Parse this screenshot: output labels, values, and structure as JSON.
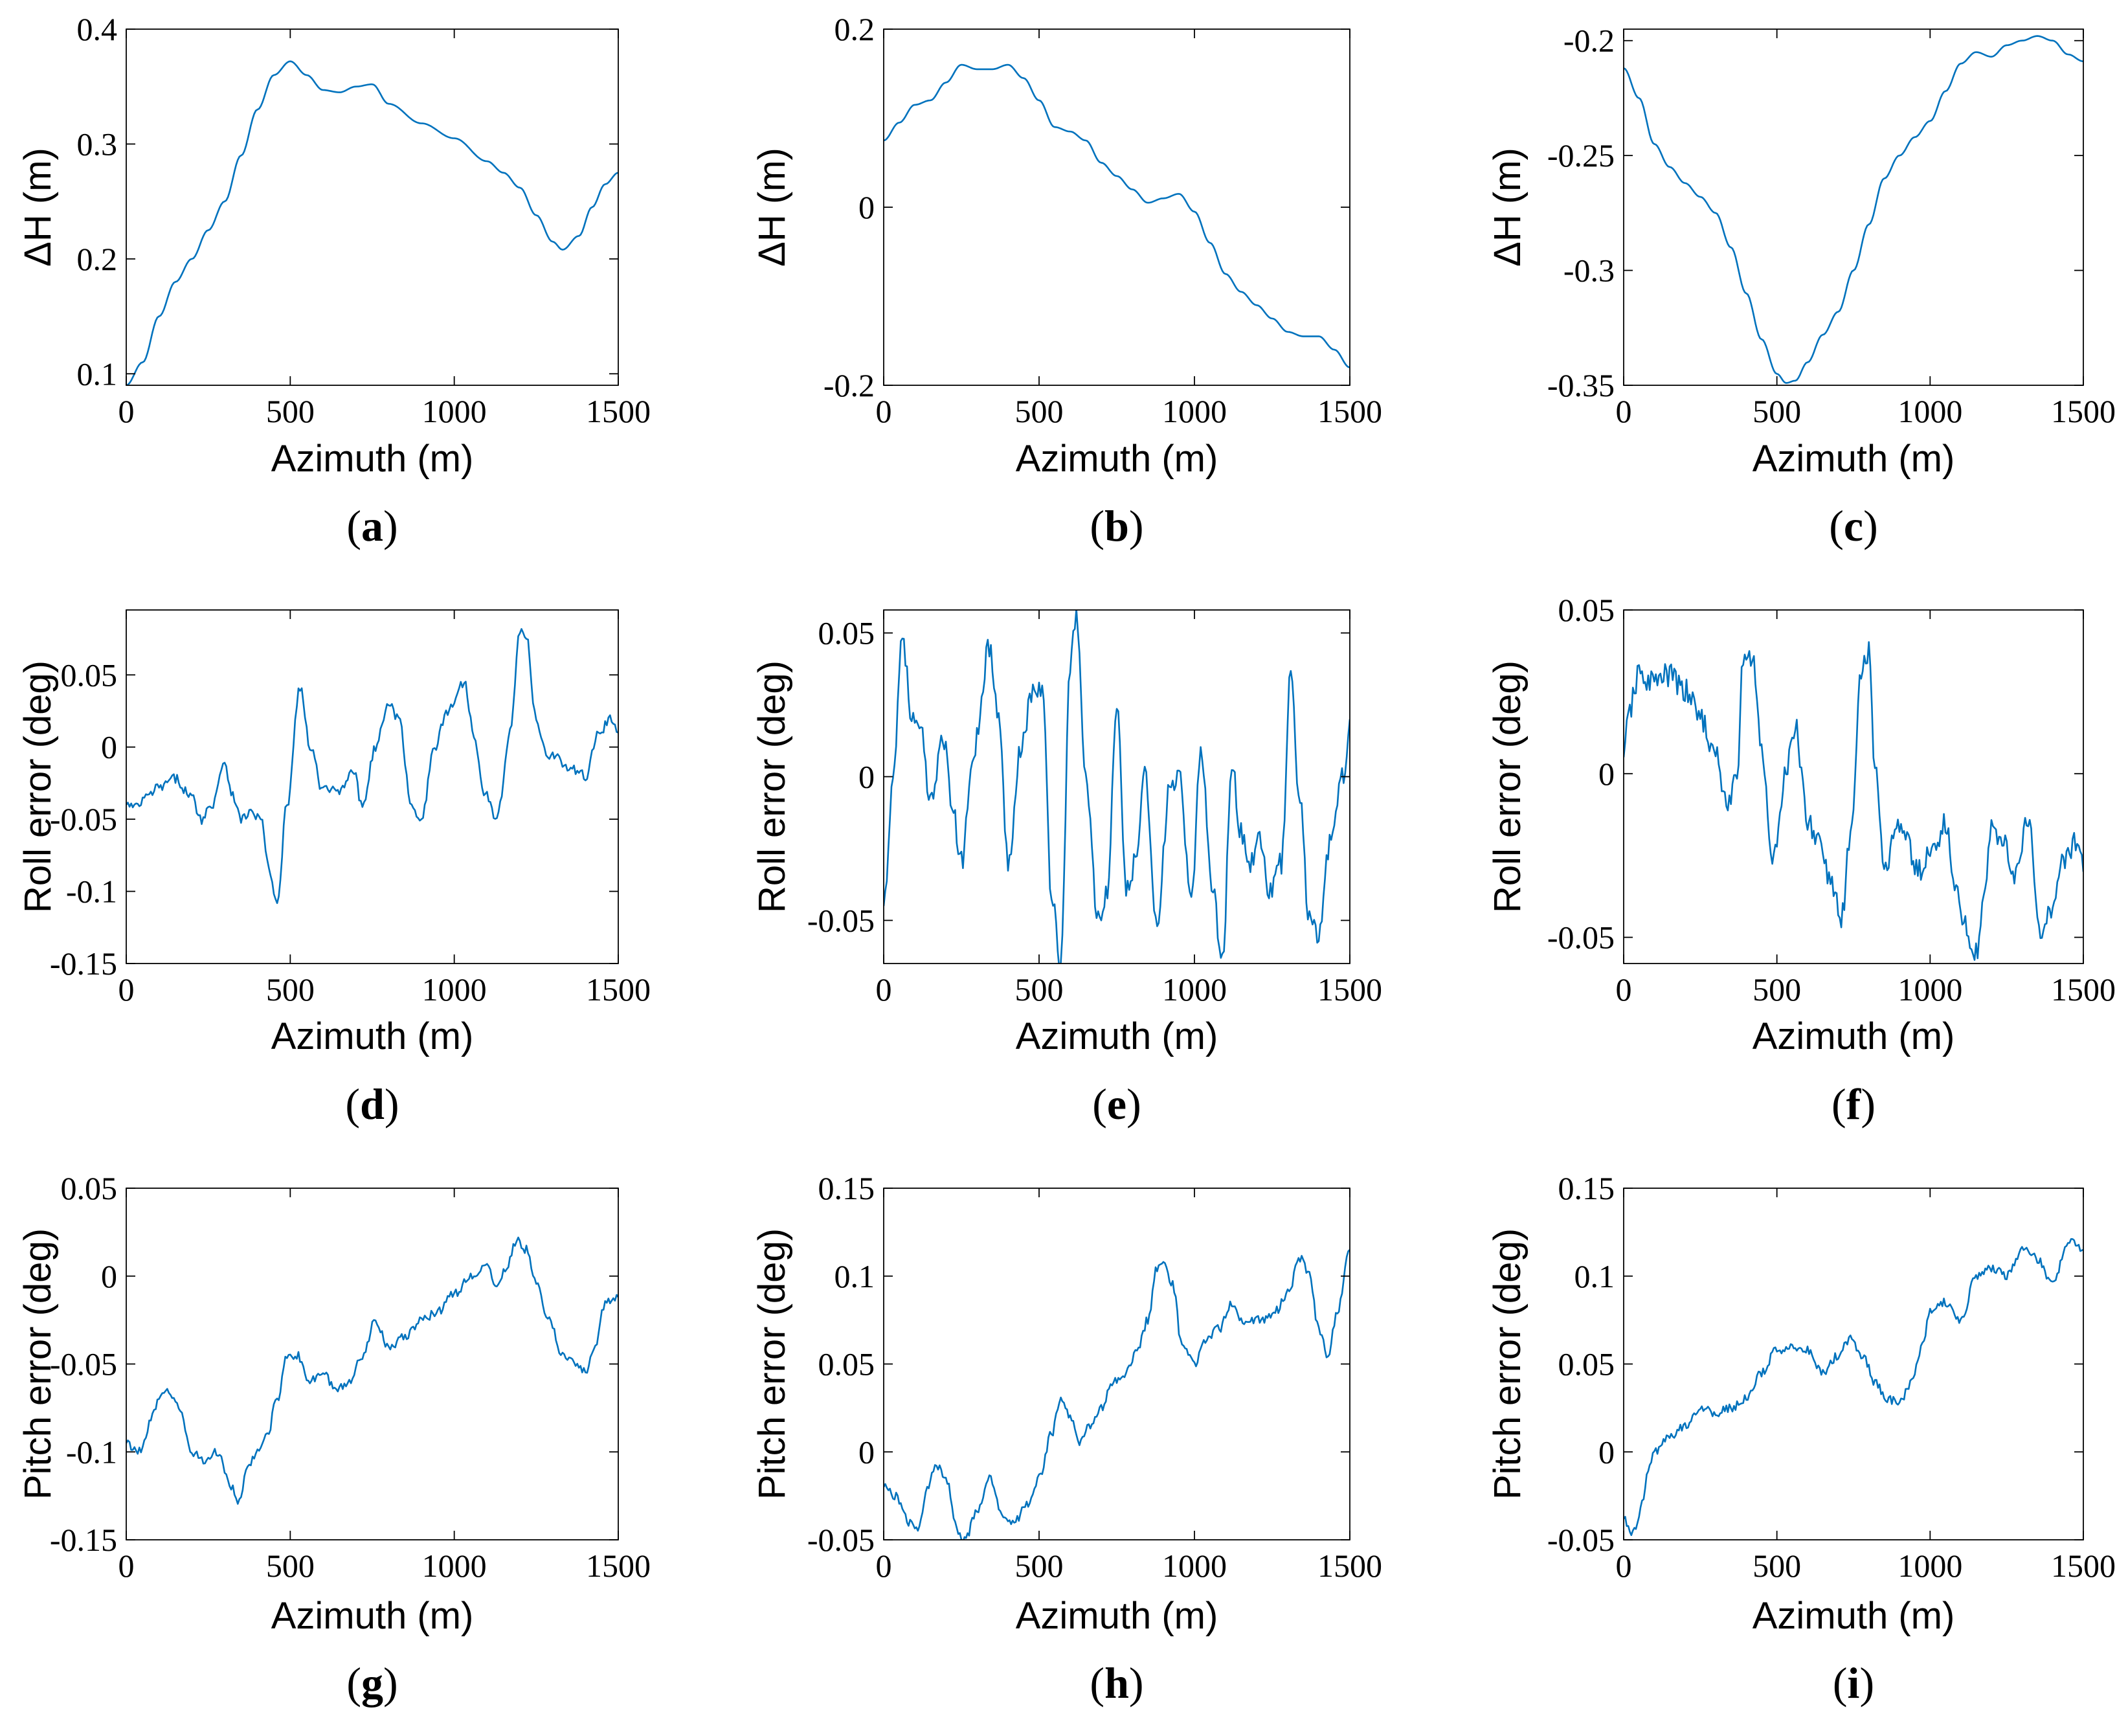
{
  "colors": {
    "line": "#0072BD",
    "axis": "#000000",
    "background": "#ffffff"
  },
  "chart_data": [
    {
      "id": "a",
      "type": "line",
      "caption_letter": "a",
      "xlabel": "Azimuth (m)",
      "ylabel": "ΔH (m)",
      "xlim": [
        0,
        1500
      ],
      "ylim": [
        0.09,
        0.4
      ],
      "xticks": [
        0,
        500,
        1000,
        1500
      ],
      "xtick_labels": [
        "0",
        "500",
        "1000",
        "1500"
      ],
      "yticks": [
        0.1,
        0.2,
        0.3,
        0.4
      ],
      "ytick_labels": [
        "0.1",
        "0.2",
        "0.3",
        "0.4"
      ],
      "series": [
        {
          "name": "ΔH",
          "noise": 0,
          "x": [
            0,
            50,
            100,
            150,
            200,
            250,
            300,
            350,
            400,
            450,
            500,
            550,
            600,
            650,
            700,
            750,
            800,
            900,
            1000,
            1100,
            1150,
            1200,
            1250,
            1300,
            1330,
            1380,
            1420,
            1460,
            1500
          ],
          "y": [
            0.09,
            0.11,
            0.15,
            0.18,
            0.2,
            0.225,
            0.25,
            0.29,
            0.33,
            0.36,
            0.372,
            0.36,
            0.347,
            0.345,
            0.35,
            0.352,
            0.335,
            0.318,
            0.305,
            0.285,
            0.275,
            0.262,
            0.238,
            0.215,
            0.208,
            0.22,
            0.245,
            0.265,
            0.275
          ]
        }
      ]
    },
    {
      "id": "b",
      "type": "line",
      "caption_letter": "b",
      "xlabel": "Azimuth (m)",
      "ylabel": "ΔH (m)",
      "xlim": [
        0,
        1500
      ],
      "ylim": [
        -0.2,
        0.2
      ],
      "xticks": [
        0,
        500,
        1000,
        1500
      ],
      "xtick_labels": [
        "0",
        "500",
        "1000",
        "1500"
      ],
      "yticks": [
        -0.2,
        0,
        0.2
      ],
      "ytick_labels": [
        "-0.2",
        "0",
        "0.2"
      ],
      "series": [
        {
          "name": "ΔH",
          "noise": 0,
          "x": [
            0,
            50,
            100,
            150,
            200,
            250,
            300,
            350,
            400,
            450,
            500,
            550,
            600,
            650,
            700,
            750,
            800,
            850,
            900,
            950,
            1000,
            1050,
            1100,
            1150,
            1200,
            1250,
            1300,
            1350,
            1400,
            1450,
            1500
          ],
          "y": [
            0.075,
            0.095,
            0.115,
            0.12,
            0.14,
            0.16,
            0.155,
            0.155,
            0.16,
            0.145,
            0.12,
            0.09,
            0.085,
            0.075,
            0.05,
            0.035,
            0.02,
            0.005,
            0.01,
            0.015,
            -0.005,
            -0.04,
            -0.075,
            -0.095,
            -0.11,
            -0.125,
            -0.14,
            -0.145,
            -0.145,
            -0.16,
            -0.18
          ]
        }
      ]
    },
    {
      "id": "c",
      "type": "line",
      "caption_letter": "c",
      "xlabel": "Azimuth (m)",
      "ylabel": "ΔH (m)",
      "xlim": [
        0,
        1500
      ],
      "ylim": [
        -0.35,
        -0.195
      ],
      "xticks": [
        0,
        500,
        1000,
        1500
      ],
      "xtick_labels": [
        "0",
        "500",
        "1000",
        "1500"
      ],
      "yticks": [
        -0.35,
        -0.3,
        -0.25,
        -0.2
      ],
      "ytick_labels": [
        "-0.35",
        "-0.3",
        "-0.25",
        "-0.2"
      ],
      "series": [
        {
          "name": "ΔH",
          "noise": 0,
          "x": [
            0,
            50,
            100,
            150,
            200,
            250,
            300,
            350,
            400,
            450,
            500,
            530,
            560,
            600,
            650,
            700,
            750,
            800,
            850,
            900,
            950,
            1000,
            1050,
            1100,
            1150,
            1200,
            1250,
            1300,
            1350,
            1400,
            1450,
            1500
          ],
          "y": [
            -0.212,
            -0.225,
            -0.245,
            -0.255,
            -0.262,
            -0.268,
            -0.275,
            -0.29,
            -0.31,
            -0.33,
            -0.345,
            -0.349,
            -0.348,
            -0.34,
            -0.328,
            -0.318,
            -0.3,
            -0.28,
            -0.26,
            -0.25,
            -0.242,
            -0.235,
            -0.222,
            -0.21,
            -0.205,
            -0.207,
            -0.202,
            -0.2,
            -0.198,
            -0.2,
            -0.206,
            -0.209
          ]
        }
      ]
    },
    {
      "id": "d",
      "type": "line",
      "caption_letter": "d",
      "xlabel": "Azimuth (m)",
      "ylabel": "Roll error (deg)",
      "xlim": [
        0,
        1500
      ],
      "ylim": [
        -0.15,
        0.095
      ],
      "xticks": [
        0,
        500,
        1000,
        1500
      ],
      "xtick_labels": [
        "0",
        "500",
        "1000",
        "1500"
      ],
      "yticks": [
        -0.15,
        -0.1,
        -0.05,
        0,
        0.05
      ],
      "ytick_labels": [
        "-0.15",
        "-0.1",
        "-0.05",
        "0",
        "0.05"
      ],
      "series": [
        {
          "name": "Roll error",
          "noise": 0.0035,
          "x": [
            0,
            30,
            60,
            100,
            150,
            200,
            230,
            260,
            300,
            320,
            350,
            380,
            410,
            440,
            460,
            490,
            530,
            560,
            600,
            650,
            690,
            720,
            760,
            800,
            830,
            870,
            900,
            940,
            980,
            1030,
            1060,
            1090,
            1130,
            1170,
            1200,
            1220,
            1250,
            1280,
            1300,
            1350,
            1400,
            1440,
            1480,
            1500
          ],
          "y": [
            -0.04,
            -0.042,
            -0.035,
            -0.028,
            -0.022,
            -0.035,
            -0.05,
            -0.04,
            -0.01,
            -0.03,
            -0.05,
            -0.045,
            -0.05,
            -0.09,
            -0.11,
            -0.04,
            0.042,
            0.0,
            -0.03,
            -0.03,
            -0.015,
            -0.04,
            0.0,
            0.03,
            0.02,
            -0.04,
            -0.05,
            0.0,
            0.025,
            0.045,
            0.01,
            -0.03,
            -0.05,
            0.01,
            0.08,
            0.075,
            0.02,
            -0.005,
            -0.005,
            -0.015,
            -0.02,
            0.01,
            0.02,
            0.01
          ]
        }
      ]
    },
    {
      "id": "e",
      "type": "line",
      "caption_letter": "e",
      "xlabel": "Azimuth (m)",
      "ylabel": "Roll error (deg)",
      "xlim": [
        0,
        1500
      ],
      "ylim": [
        -0.065,
        0.058
      ],
      "xticks": [
        0,
        500,
        1000,
        1500
      ],
      "xtick_labels": [
        "0",
        "500",
        "1000",
        "1500"
      ],
      "yticks": [
        -0.05,
        0,
        0.05
      ],
      "ytick_labels": [
        "-0.05",
        "0",
        "0.05"
      ],
      "series": [
        {
          "name": "Roll error",
          "noise": 0.004,
          "x": [
            0,
            30,
            60,
            90,
            120,
            150,
            190,
            220,
            250,
            290,
            340,
            370,
            400,
            440,
            480,
            510,
            540,
            570,
            600,
            620,
            650,
            690,
            720,
            750,
            780,
            810,
            840,
            880,
            920,
            950,
            990,
            1020,
            1060,
            1090,
            1120,
            1150,
            1180,
            1210,
            1240,
            1280,
            1310,
            1340,
            1370,
            1400,
            1440,
            1480,
            1500
          ],
          "y": [
            -0.045,
            0.0,
            0.05,
            0.02,
            0.015,
            -0.01,
            0.015,
            -0.01,
            -0.03,
            0.01,
            0.045,
            0.02,
            -0.03,
            0.01,
            0.03,
            0.03,
            -0.04,
            -0.065,
            0.04,
            0.055,
            0.0,
            -0.05,
            -0.04,
            0.025,
            -0.04,
            -0.03,
            0.0,
            -0.05,
            -0.005,
            0.0,
            -0.045,
            0.01,
            -0.04,
            -0.065,
            0.005,
            -0.02,
            -0.03,
            -0.02,
            -0.04,
            -0.03,
            0.035,
            -0.01,
            -0.05,
            -0.055,
            -0.02,
            0.0,
            0.02
          ]
        }
      ]
    },
    {
      "id": "f",
      "type": "line",
      "caption_letter": "f",
      "xlabel": "Azimuth (m)",
      "ylabel": "Roll error (deg)",
      "xlim": [
        0,
        1500
      ],
      "ylim": [
        -0.058,
        0.05
      ],
      "xticks": [
        0,
        500,
        1000,
        1500
      ],
      "xtick_labels": [
        "0",
        "500",
        "1000",
        "1500"
      ],
      "yticks": [
        -0.05,
        0,
        0.05
      ],
      "ytick_labels": [
        "-0.05",
        "0",
        "0.05"
      ],
      "series": [
        {
          "name": "Roll error",
          "noise": 0.004,
          "x": [
            0,
            20,
            50,
            100,
            150,
            200,
            250,
            300,
            340,
            370,
            390,
            420,
            450,
            480,
            500,
            530,
            560,
            600,
            640,
            680,
            710,
            740,
            780,
            800,
            820,
            850,
            890,
            920,
            960,
            1000,
            1050,
            1080,
            1110,
            1150,
            1180,
            1200,
            1230,
            1280,
            1320,
            1360,
            1400,
            1440,
            1480,
            1500
          ],
          "y": [
            0.005,
            0.02,
            0.03,
            0.028,
            0.03,
            0.025,
            0.018,
            0.005,
            -0.01,
            0.0,
            0.035,
            0.035,
            0.01,
            -0.025,
            -0.02,
            0.0,
            0.015,
            -0.015,
            -0.02,
            -0.035,
            -0.045,
            -0.02,
            0.035,
            0.038,
            0.0,
            -0.03,
            -0.015,
            -0.02,
            -0.03,
            -0.025,
            -0.015,
            -0.035,
            -0.045,
            -0.055,
            -0.035,
            -0.015,
            -0.02,
            -0.03,
            -0.015,
            -0.05,
            -0.04,
            -0.025,
            -0.02,
            -0.03
          ]
        }
      ]
    },
    {
      "id": "g",
      "type": "line",
      "caption_letter": "g",
      "xlabel": "Azimuth (m)",
      "ylabel": "Pitch error (deg)",
      "xlim": [
        0,
        1500
      ],
      "ylim": [
        -0.15,
        0.05
      ],
      "xticks": [
        0,
        500,
        1000,
        1500
      ],
      "xtick_labels": [
        "0",
        "500",
        "1000",
        "1500"
      ],
      "yticks": [
        -0.15,
        -0.1,
        -0.05,
        0,
        0.05
      ],
      "ytick_labels": [
        "-0.15",
        "-0.1",
        "-0.05",
        "0",
        "0.05"
      ],
      "series": [
        {
          "name": "Pitch error",
          "noise": 0.0025,
          "x": [
            0,
            40,
            80,
            100,
            130,
            160,
            200,
            240,
            280,
            320,
            340,
            370,
            400,
            430,
            460,
            490,
            520,
            560,
            600,
            640,
            680,
            720,
            760,
            800,
            850,
            900,
            950,
            1000,
            1050,
            1100,
            1130,
            1160,
            1190,
            1220,
            1250,
            1290,
            1330,
            1370,
            1400,
            1430,
            1460,
            1500
          ],
          "y": [
            -0.095,
            -0.1,
            -0.08,
            -0.07,
            -0.065,
            -0.075,
            -0.1,
            -0.105,
            -0.1,
            -0.12,
            -0.13,
            -0.11,
            -0.1,
            -0.09,
            -0.07,
            -0.045,
            -0.045,
            -0.06,
            -0.055,
            -0.065,
            -0.06,
            -0.045,
            -0.025,
            -0.04,
            -0.035,
            -0.025,
            -0.02,
            -0.01,
            0.0,
            0.005,
            -0.005,
            0.005,
            0.02,
            0.015,
            -0.005,
            -0.025,
            -0.045,
            -0.05,
            -0.055,
            -0.04,
            -0.015,
            -0.012
          ]
        }
      ]
    },
    {
      "id": "h",
      "type": "line",
      "caption_letter": "h",
      "xlabel": "Azimuth (m)",
      "ylabel": "Pitch error (deg)",
      "xlim": [
        0,
        1500
      ],
      "ylim": [
        -0.05,
        0.15
      ],
      "xticks": [
        0,
        500,
        1000,
        1500
      ],
      "xtick_labels": [
        "0",
        "500",
        "1000",
        "1500"
      ],
      "yticks": [
        -0.05,
        0,
        0.05,
        0.1,
        0.15
      ],
      "ytick_labels": [
        "-0.05",
        "0",
        "0.05",
        "0.1",
        "0.15"
      ],
      "series": [
        {
          "name": "Pitch error",
          "noise": 0.0025,
          "x": [
            0,
            40,
            80,
            110,
            140,
            170,
            200,
            240,
            260,
            300,
            340,
            380,
            420,
            460,
            500,
            540,
            570,
            600,
            630,
            660,
            700,
            740,
            780,
            820,
            850,
            880,
            900,
            930,
            960,
            1000,
            1040,
            1080,
            1120,
            1150,
            1180,
            1220,
            1260,
            1300,
            1340,
            1370,
            1400,
            1430,
            1460,
            1500
          ],
          "y": [
            -0.02,
            -0.025,
            -0.04,
            -0.045,
            -0.02,
            -0.008,
            -0.015,
            -0.045,
            -0.05,
            -0.035,
            -0.015,
            -0.035,
            -0.04,
            -0.03,
            -0.015,
            0.01,
            0.03,
            0.02,
            0.005,
            0.015,
            0.025,
            0.04,
            0.045,
            0.06,
            0.075,
            0.105,
            0.11,
            0.095,
            0.06,
            0.05,
            0.065,
            0.07,
            0.085,
            0.075,
            0.075,
            0.075,
            0.08,
            0.09,
            0.11,
            0.1,
            0.07,
            0.055,
            0.08,
            0.115
          ]
        }
      ]
    },
    {
      "id": "i",
      "type": "line",
      "caption_letter": "i",
      "xlabel": "Azimuth (m)",
      "ylabel": "Pitch error (deg)",
      "xlim": [
        0,
        1500
      ],
      "ylim": [
        -0.05,
        0.15
      ],
      "xticks": [
        0,
        500,
        1000,
        1500
      ],
      "xtick_labels": [
        "0",
        "500",
        "1000",
        "1500"
      ],
      "yticks": [
        -0.05,
        0,
        0.05,
        0.1,
        0.15
      ],
      "ytick_labels": [
        "-0.05",
        "0",
        "0.05",
        "0.1",
        "0.15"
      ],
      "series": [
        {
          "name": "Pitch error",
          "noise": 0.0025,
          "x": [
            0,
            20,
            40,
            60,
            80,
            100,
            150,
            200,
            250,
            300,
            350,
            400,
            450,
            500,
            550,
            600,
            650,
            700,
            740,
            780,
            820,
            860,
            900,
            940,
            980,
            1000,
            1050,
            1100,
            1150,
            1200,
            1250,
            1300,
            1350,
            1400,
            1450,
            1500
          ],
          "y": [
            -0.038,
            -0.045,
            -0.045,
            -0.03,
            -0.01,
            0.0,
            0.008,
            0.015,
            0.025,
            0.022,
            0.025,
            0.03,
            0.045,
            0.058,
            0.06,
            0.058,
            0.045,
            0.055,
            0.065,
            0.055,
            0.04,
            0.03,
            0.028,
            0.04,
            0.065,
            0.08,
            0.085,
            0.075,
            0.1,
            0.105,
            0.1,
            0.115,
            0.11,
            0.095,
            0.12,
            0.115
          ]
        }
      ]
    }
  ]
}
